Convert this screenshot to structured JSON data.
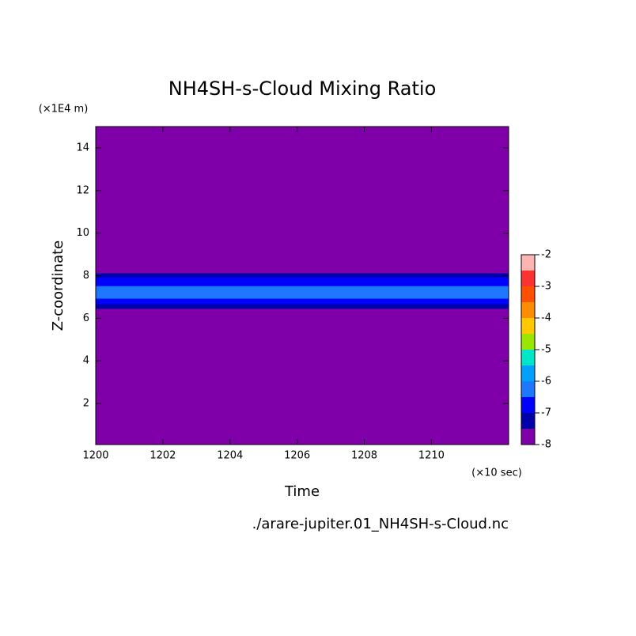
{
  "chart_data": {
    "type": "contour",
    "title": "NH4SH-s-Cloud Mixing Ratio",
    "x_label": "Time",
    "y_label": "Z-coordinate",
    "x_unit": "(×10 sec)",
    "y_unit": "(×1E4 m)",
    "footnote": "./arare-jupiter.01_NH4SH-s-Cloud.nc",
    "xlim": [
      1200,
      1212.3
    ],
    "xticks": [
      1200,
      1202,
      1204,
      1206,
      1208,
      1210
    ],
    "ylim": [
      0.07,
      15
    ],
    "yticks": [
      2,
      4,
      6,
      8,
      10,
      12,
      14
    ],
    "levels": [
      -8,
      -7.5,
      -7,
      -6.5,
      -6,
      -5.5,
      -5,
      -4.5,
      -4,
      -3.5,
      -3,
      -2.5,
      -2
    ],
    "colors": [
      "#7f00a8",
      "#0000a8",
      "#0000ff",
      "#1e78ff",
      "#00a0ff",
      "#00e6c8",
      "#9be600",
      "#ffc800",
      "#ff8c00",
      "#ff5000",
      "#ff3232",
      "#ffb4b4"
    ],
    "colorbar_ticks": [
      -8,
      -7,
      -6,
      -5,
      -4,
      -3,
      -2
    ],
    "regions": [
      {
        "zlim": [
          0.07,
          15
        ],
        "level": -8
      },
      {
        "zlim": [
          6.44,
          8.11
        ],
        "level": -7.5
      },
      {
        "zlim": [
          6.66,
          7.92
        ],
        "level": -7
      },
      {
        "zlim": [
          6.92,
          7.51
        ],
        "level": -6.5
      }
    ]
  }
}
